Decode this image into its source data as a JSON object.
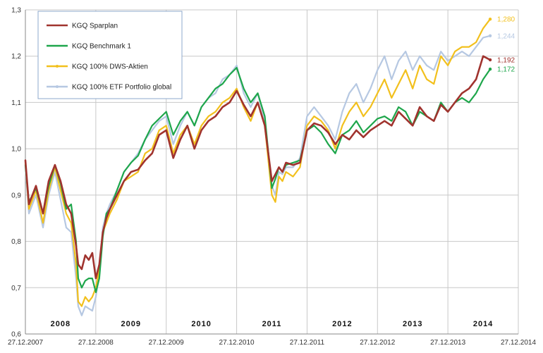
{
  "chart_data": {
    "type": "line",
    "title": "",
    "xlabel": "",
    "ylabel": "",
    "ylim": [
      0.6,
      1.3
    ],
    "y_ticks": [
      "0,6",
      "0,7",
      "0,8",
      "0,9",
      "1,0",
      "1,1",
      "1,2",
      "1,3"
    ],
    "x_ticks": [
      "27.12.2007",
      "27.12.2008",
      "27.12.2009",
      "27.12.2010",
      "27.12.2011",
      "27.12.2012",
      "27.12.2013",
      "27.12.2014"
    ],
    "year_labels": [
      "2008",
      "2009",
      "2010",
      "2011",
      "2012",
      "2013",
      "2014"
    ],
    "grid": true,
    "legend_position": "top-left",
    "series": [
      {
        "name": "KGQ Sparplan",
        "color": "#a0332e",
        "end_label": "1,192",
        "x": [
          0,
          0.05,
          0.15,
          0.25,
          0.33,
          0.42,
          0.5,
          0.58,
          0.65,
          0.72,
          0.75,
          0.8,
          0.85,
          0.9,
          0.95,
          1.0,
          1.05,
          1.1,
          1.15,
          1.2,
          1.3,
          1.4,
          1.5,
          1.6,
          1.7,
          1.8,
          1.9,
          2.0,
          2.1,
          2.2,
          2.3,
          2.4,
          2.5,
          2.6,
          2.7,
          2.8,
          2.9,
          3.0,
          3.1,
          3.2,
          3.3,
          3.4,
          3.5,
          3.55,
          3.6,
          3.65,
          3.7,
          3.8,
          3.9,
          4.0,
          4.1,
          4.2,
          4.3,
          4.4,
          4.5,
          4.6,
          4.7,
          4.8,
          4.9,
          5.0,
          5.1,
          5.2,
          5.3,
          5.4,
          5.5,
          5.6,
          5.7,
          5.8,
          5.9,
          6.0,
          6.1,
          6.2,
          6.3,
          6.4,
          6.5,
          6.6
        ],
        "values": [
          0.975,
          0.88,
          0.92,
          0.86,
          0.93,
          0.965,
          0.93,
          0.88,
          0.86,
          0.79,
          0.75,
          0.74,
          0.77,
          0.76,
          0.775,
          0.72,
          0.75,
          0.82,
          0.85,
          0.87,
          0.9,
          0.93,
          0.95,
          0.955,
          0.975,
          0.99,
          1.03,
          1.04,
          0.98,
          1.02,
          1.05,
          1.0,
          1.04,
          1.06,
          1.07,
          1.09,
          1.1,
          1.125,
          1.095,
          1.07,
          1.1,
          1.05,
          0.93,
          0.945,
          0.96,
          0.95,
          0.97,
          0.965,
          0.97,
          1.04,
          1.055,
          1.05,
          1.035,
          1.01,
          1.03,
          1.02,
          1.04,
          1.025,
          1.04,
          1.05,
          1.06,
          1.05,
          1.08,
          1.065,
          1.05,
          1.09,
          1.07,
          1.06,
          1.095,
          1.08,
          1.1,
          1.12,
          1.13,
          1.15,
          1.2,
          1.192
        ]
      },
      {
        "name": "KGQ Benchmark 1",
        "color": "#1ea64b",
        "end_label": "1,172",
        "x": [
          0,
          0.05,
          0.15,
          0.25,
          0.33,
          0.42,
          0.5,
          0.58,
          0.65,
          0.72,
          0.75,
          0.8,
          0.85,
          0.9,
          0.95,
          1.0,
          1.05,
          1.1,
          1.15,
          1.2,
          1.3,
          1.4,
          1.5,
          1.6,
          1.7,
          1.8,
          1.9,
          2.0,
          2.1,
          2.2,
          2.3,
          2.4,
          2.5,
          2.6,
          2.7,
          2.8,
          2.9,
          3.0,
          3.1,
          3.2,
          3.3,
          3.4,
          3.5,
          3.55,
          3.6,
          3.65,
          3.7,
          3.8,
          3.9,
          4.0,
          4.1,
          4.2,
          4.3,
          4.4,
          4.5,
          4.6,
          4.7,
          4.8,
          4.9,
          5.0,
          5.1,
          5.2,
          5.3,
          5.4,
          5.5,
          5.6,
          5.7,
          5.8,
          5.9,
          6.0,
          6.1,
          6.2,
          6.3,
          6.4,
          6.5,
          6.6
        ],
        "values": [
          0.965,
          0.885,
          0.915,
          0.86,
          0.92,
          0.965,
          0.925,
          0.87,
          0.88,
          0.8,
          0.72,
          0.7,
          0.715,
          0.72,
          0.72,
          0.69,
          0.72,
          0.81,
          0.86,
          0.87,
          0.91,
          0.95,
          0.97,
          0.985,
          1.02,
          1.05,
          1.065,
          1.08,
          1.03,
          1.06,
          1.08,
          1.05,
          1.09,
          1.11,
          1.13,
          1.14,
          1.16,
          1.175,
          1.13,
          1.1,
          1.12,
          1.07,
          0.915,
          0.935,
          0.96,
          0.95,
          0.965,
          0.97,
          0.975,
          1.04,
          1.05,
          1.035,
          1.01,
          0.99,
          1.03,
          1.04,
          1.06,
          1.035,
          1.05,
          1.065,
          1.07,
          1.06,
          1.09,
          1.08,
          1.05,
          1.08,
          1.07,
          1.06,
          1.1,
          1.08,
          1.1,
          1.11,
          1.1,
          1.12,
          1.15,
          1.172
        ]
      },
      {
        "name": "KGQ 100% DWS-Aktien",
        "color": "#f2c01d",
        "end_label": "1,280",
        "x": [
          0,
          0.05,
          0.15,
          0.25,
          0.33,
          0.42,
          0.5,
          0.58,
          0.65,
          0.72,
          0.75,
          0.8,
          0.85,
          0.9,
          0.95,
          1.0,
          1.05,
          1.1,
          1.15,
          1.2,
          1.3,
          1.4,
          1.5,
          1.6,
          1.7,
          1.8,
          1.9,
          2.0,
          2.1,
          2.2,
          2.3,
          2.4,
          2.5,
          2.6,
          2.7,
          2.8,
          2.9,
          3.0,
          3.1,
          3.2,
          3.3,
          3.4,
          3.5,
          3.55,
          3.6,
          3.65,
          3.7,
          3.8,
          3.9,
          4.0,
          4.1,
          4.2,
          4.3,
          4.4,
          4.5,
          4.6,
          4.7,
          4.8,
          4.9,
          5.0,
          5.1,
          5.2,
          5.3,
          5.4,
          5.5,
          5.6,
          5.7,
          5.8,
          5.9,
          6.0,
          6.1,
          6.2,
          6.3,
          6.4,
          6.5,
          6.6
        ],
        "values": [
          0.97,
          0.87,
          0.91,
          0.84,
          0.91,
          0.96,
          0.91,
          0.86,
          0.84,
          0.75,
          0.67,
          0.66,
          0.68,
          0.67,
          0.68,
          0.7,
          0.74,
          0.82,
          0.84,
          0.86,
          0.89,
          0.93,
          0.94,
          0.95,
          0.99,
          1.0,
          1.04,
          1.05,
          0.99,
          1.03,
          1.05,
          1.01,
          1.05,
          1.07,
          1.08,
          1.1,
          1.11,
          1.13,
          1.09,
          1.06,
          1.1,
          1.05,
          0.9,
          0.885,
          0.94,
          0.93,
          0.95,
          0.94,
          0.96,
          1.05,
          1.07,
          1.06,
          1.04,
          1.0,
          1.05,
          1.08,
          1.1,
          1.07,
          1.09,
          1.12,
          1.15,
          1.11,
          1.14,
          1.17,
          1.13,
          1.18,
          1.15,
          1.14,
          1.2,
          1.18,
          1.21,
          1.22,
          1.22,
          1.23,
          1.26,
          1.28
        ]
      },
      {
        "name": "KGQ 100% ETF Portfolio global",
        "color": "#b6c8e2",
        "end_label": "1,244",
        "x": [
          0,
          0.05,
          0.15,
          0.25,
          0.33,
          0.42,
          0.5,
          0.58,
          0.65,
          0.72,
          0.75,
          0.8,
          0.85,
          0.9,
          0.95,
          1.0,
          1.05,
          1.1,
          1.15,
          1.2,
          1.3,
          1.4,
          1.5,
          1.6,
          1.7,
          1.8,
          1.9,
          2.0,
          2.1,
          2.2,
          2.3,
          2.4,
          2.5,
          2.6,
          2.7,
          2.8,
          2.9,
          3.0,
          3.1,
          3.2,
          3.3,
          3.4,
          3.5,
          3.55,
          3.6,
          3.65,
          3.7,
          3.8,
          3.9,
          4.0,
          4.1,
          4.2,
          4.3,
          4.4,
          4.5,
          4.6,
          4.7,
          4.8,
          4.9,
          5.0,
          5.1,
          5.2,
          5.3,
          5.4,
          5.5,
          5.6,
          5.7,
          5.8,
          5.9,
          6.0,
          6.1,
          6.2,
          6.3,
          6.4,
          6.5,
          6.6
        ],
        "values": [
          0.96,
          0.86,
          0.9,
          0.83,
          0.9,
          0.95,
          0.89,
          0.83,
          0.82,
          0.72,
          0.66,
          0.64,
          0.66,
          0.655,
          0.65,
          0.68,
          0.73,
          0.83,
          0.86,
          0.88,
          0.91,
          0.95,
          0.97,
          0.99,
          1.02,
          1.04,
          1.06,
          1.07,
          1.01,
          1.05,
          1.08,
          1.05,
          1.09,
          1.11,
          1.12,
          1.15,
          1.16,
          1.18,
          1.12,
          1.09,
          1.12,
          1.06,
          0.92,
          0.9,
          0.95,
          0.945,
          0.96,
          0.96,
          0.98,
          1.07,
          1.09,
          1.07,
          1.05,
          1.02,
          1.08,
          1.12,
          1.14,
          1.1,
          1.13,
          1.17,
          1.2,
          1.15,
          1.19,
          1.21,
          1.17,
          1.2,
          1.18,
          1.17,
          1.21,
          1.19,
          1.2,
          1.21,
          1.2,
          1.22,
          1.24,
          1.244
        ]
      }
    ]
  }
}
